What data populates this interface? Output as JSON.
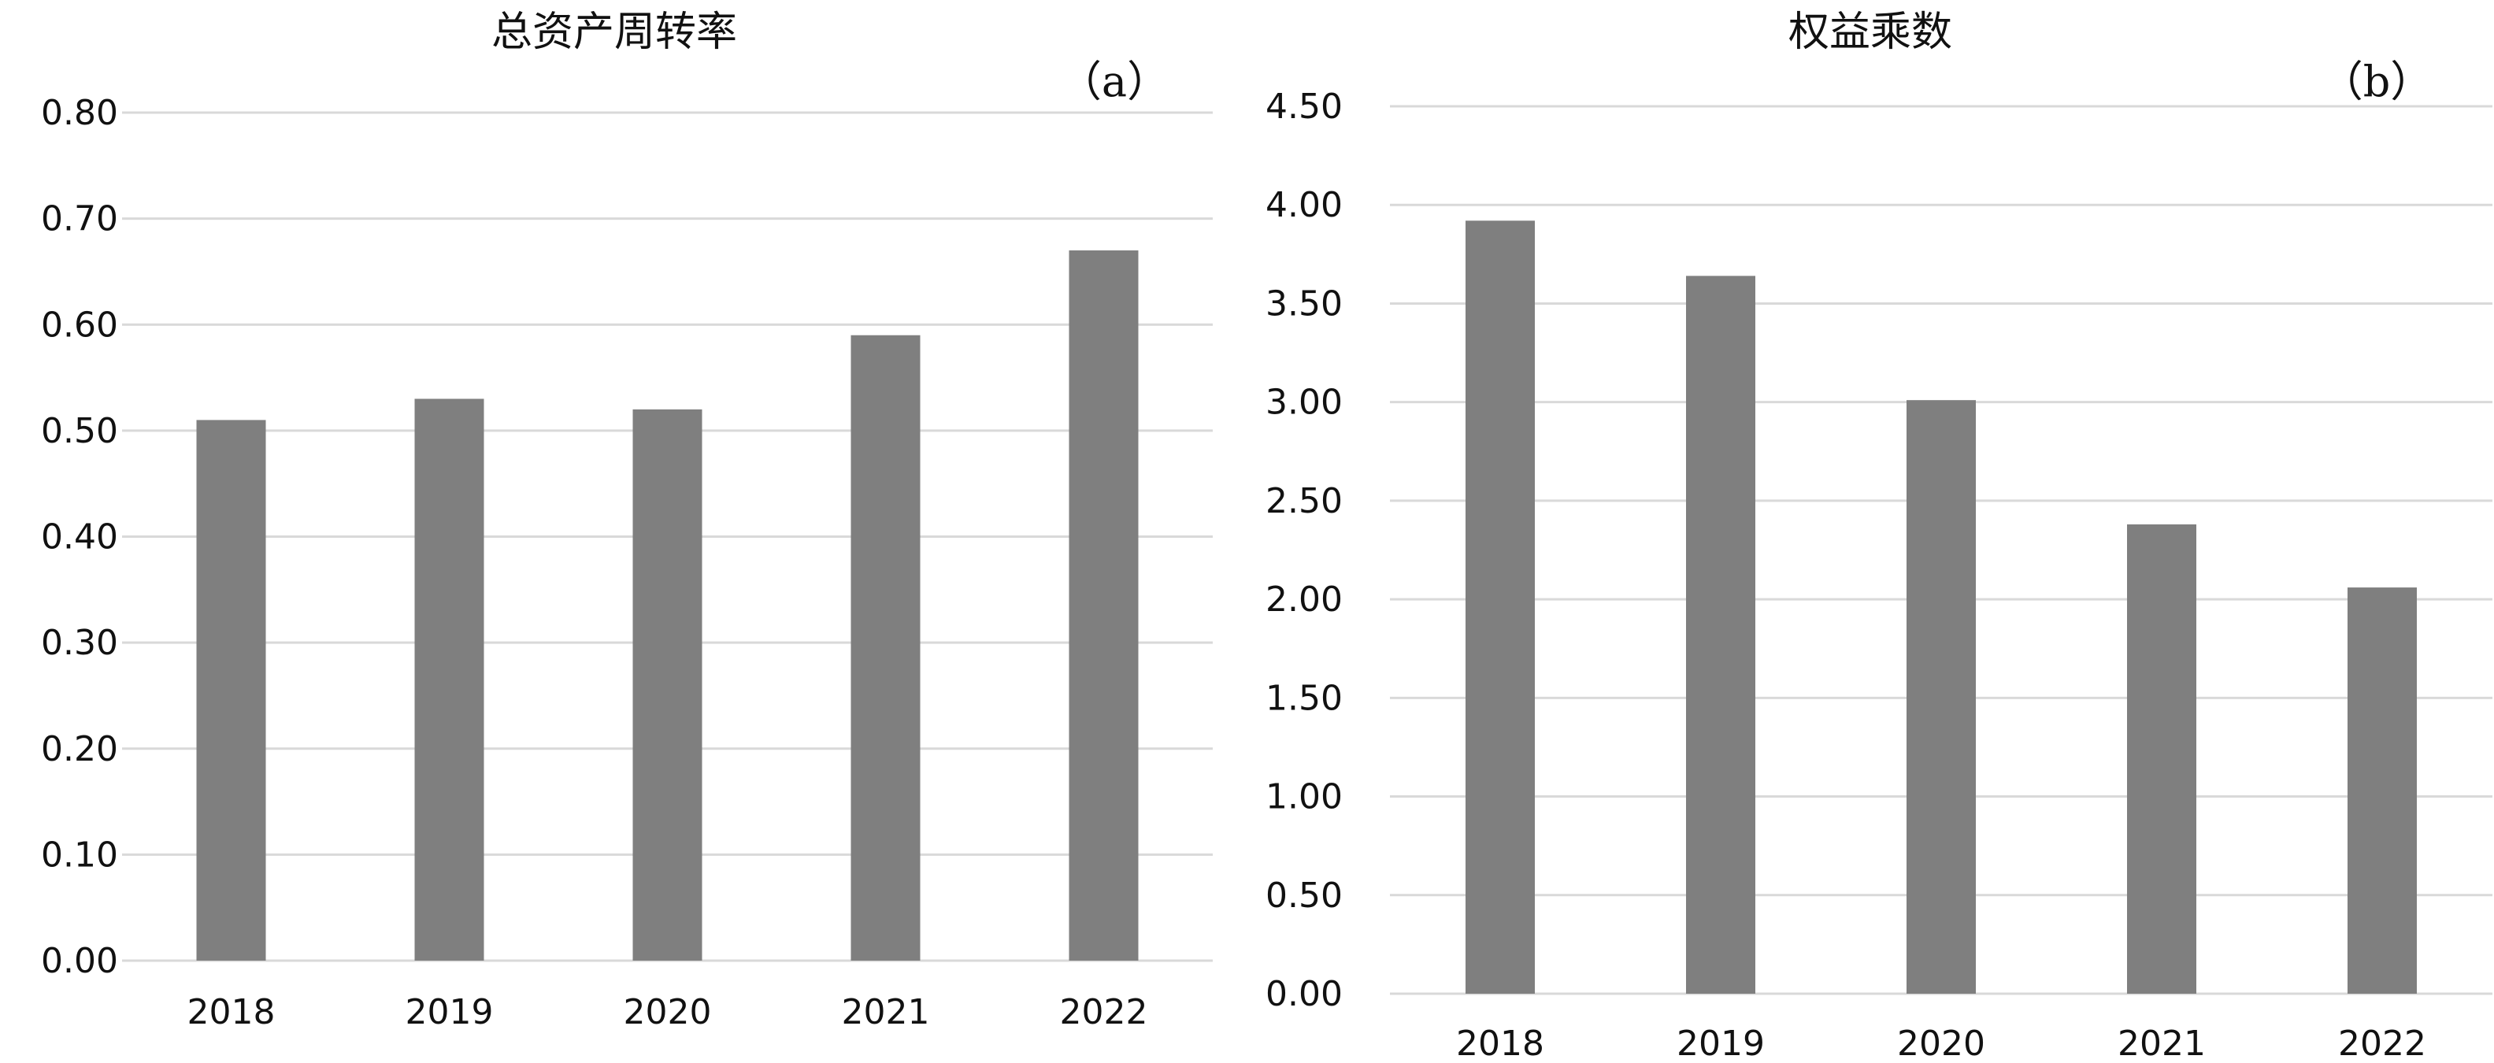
{
  "colors": {
    "bar": "#7f7f7f",
    "grid": "#d9d9d9",
    "text": "#111111",
    "background": "#ffffff"
  },
  "chart_data": [
    {
      "id": "a",
      "type": "bar",
      "title": "总资产周转率",
      "panel_label": "（a）",
      "categories": [
        "2018",
        "2019",
        "2020",
        "2021",
        "2022"
      ],
      "values": [
        0.51,
        0.53,
        0.52,
        0.59,
        0.67
      ],
      "xlabel": "",
      "ylabel": "",
      "ylim": [
        0,
        0.8
      ],
      "yticks": [
        "0.00",
        "0.10",
        "0.20",
        "0.30",
        "0.40",
        "0.50",
        "0.60",
        "0.70",
        "0.80"
      ],
      "grid": true,
      "legend": "none"
    },
    {
      "id": "b",
      "type": "bar",
      "title": "权益乘数",
      "panel_label": "（b）",
      "categories": [
        "2018",
        "2019",
        "2020",
        "2021",
        "2022"
      ],
      "values": [
        3.92,
        3.64,
        3.01,
        2.38,
        2.06
      ],
      "xlabel": "",
      "ylabel": "",
      "ylim": [
        0,
        4.5
      ],
      "yticks": [
        "0.00",
        "0.50",
        "1.00",
        "1.50",
        "2.00",
        "2.50",
        "3.00",
        "3.50",
        "4.00",
        "4.50"
      ],
      "grid": true,
      "legend": "none"
    }
  ]
}
